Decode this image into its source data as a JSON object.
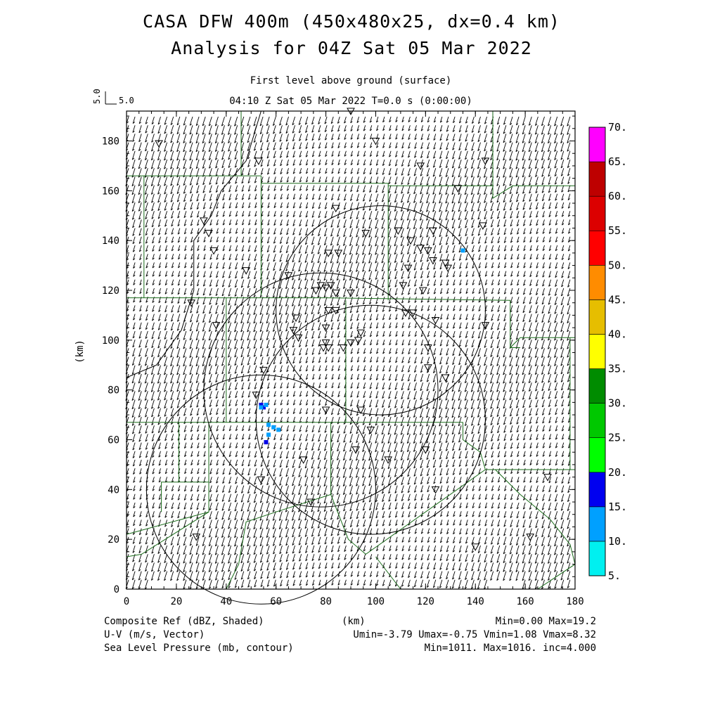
{
  "header": {
    "title_line1": "CASA DFW 400m (450x480x25, dx=0.4 km)",
    "title_line2": "Analysis for 04Z Sat 05 Mar 2022",
    "level": "First level above ground (surface)",
    "time": "04:10 Z Sat 05 Mar 2022    T=0.0 s (0:00:00)",
    "ref_vector_label": "5.0",
    "ref_vector_value": "5.0"
  },
  "axes": {
    "ylabel": "(km)",
    "xlabel": "(km)",
    "xticks": [
      "0",
      "20",
      "40",
      "60",
      "80",
      "100",
      "120",
      "140",
      "160",
      "180"
    ],
    "yticks": [
      "0",
      "20",
      "40",
      "60",
      "80",
      "100",
      "120",
      "140",
      "160",
      "180"
    ],
    "xlim": [
      0,
      180
    ],
    "ylim": [
      0,
      192
    ]
  },
  "colorbar": {
    "labels": [
      "5.",
      "10.",
      "15.",
      "20.",
      "25.",
      "30.",
      "35.",
      "40.",
      "45.",
      "50.",
      "55.",
      "60.",
      "65.",
      "70."
    ],
    "colors": [
      "#00f0f0",
      "#00a0ff",
      "#0000f0",
      "#00ff00",
      "#00c800",
      "#008c00",
      "#ffff00",
      "#e6be00",
      "#ff8c00",
      "#ff0000",
      "#dc0000",
      "#be0000",
      "#ff00ff"
    ]
  },
  "footer": {
    "field1": "Composite Ref (dBZ, Shaded)",
    "field2": "U-V (m/s, Vector)",
    "field3": "Sea Level Pressure (mb, contour)",
    "xunit": "(km)",
    "stats1": "Min=0.00 Max=19.2",
    "stats2": "Umin=-3.79 Umax=-0.75 Vmin=1.08 Vmax=8.32",
    "stats3": "Min=1011. Max=1016. inc=4.000"
  },
  "map": {
    "radar_rings": [
      {
        "cx": 78,
        "cy": 80,
        "r": 47
      },
      {
        "cx": 102,
        "cy": 112,
        "r": 42
      },
      {
        "cx": 98,
        "cy": 68,
        "r": 46
      },
      {
        "cx": 54,
        "cy": 40,
        "r": 46
      }
    ],
    "stations": [
      [
        13,
        179
      ],
      [
        53,
        172
      ],
      [
        90,
        192
      ],
      [
        100,
        180
      ],
      [
        118,
        170
      ],
      [
        144,
        172
      ],
      [
        133,
        161
      ],
      [
        84,
        153
      ],
      [
        31,
        148
      ],
      [
        33,
        143
      ],
      [
        35,
        136
      ],
      [
        96,
        143
      ],
      [
        109,
        144
      ],
      [
        114,
        140
      ],
      [
        123,
        144
      ],
      [
        143,
        146
      ],
      [
        81,
        135
      ],
      [
        85,
        135
      ],
      [
        118,
        137
      ],
      [
        121,
        136
      ],
      [
        123,
        132
      ],
      [
        128,
        131
      ],
      [
        129,
        129
      ],
      [
        113,
        129
      ],
      [
        48,
        128
      ],
      [
        65,
        126
      ],
      [
        78,
        122
      ],
      [
        82,
        122
      ],
      [
        76,
        120
      ],
      [
        80,
        121
      ],
      [
        84,
        119
      ],
      [
        90,
        119
      ],
      [
        111,
        122
      ],
      [
        119,
        120
      ],
      [
        26,
        115
      ],
      [
        81,
        112
      ],
      [
        84,
        112
      ],
      [
        68,
        109
      ],
      [
        112,
        111
      ],
      [
        115,
        111
      ],
      [
        124,
        108
      ],
      [
        144,
        106
      ],
      [
        36,
        106
      ],
      [
        67,
        104
      ],
      [
        80,
        105
      ],
      [
        69,
        101
      ],
      [
        80,
        99
      ],
      [
        79,
        97
      ],
      [
        81,
        97
      ],
      [
        87,
        97
      ],
      [
        90,
        99
      ],
      [
        94,
        103
      ],
      [
        93,
        100
      ],
      [
        121,
        97
      ],
      [
        55,
        88
      ],
      [
        121,
        89
      ],
      [
        128,
        85
      ],
      [
        52,
        78
      ],
      [
        80,
        72
      ],
      [
        94,
        72
      ],
      [
        98,
        64
      ],
      [
        92,
        56
      ],
      [
        105,
        52
      ],
      [
        71,
        52
      ],
      [
        120,
        56
      ],
      [
        54,
        44
      ],
      [
        124,
        40
      ],
      [
        74,
        35
      ],
      [
        28,
        21
      ],
      [
        140,
        17
      ],
      [
        162,
        21
      ],
      [
        169,
        45
      ]
    ],
    "echoes": [
      [
        54,
        74,
        "#0000e6"
      ],
      [
        55,
        73,
        "#0000e6"
      ],
      [
        56,
        74,
        "#00a0ff"
      ],
      [
        57,
        66,
        "#00a0ff"
      ],
      [
        59,
        65,
        "#00a0ff"
      ],
      [
        61,
        64,
        "#00a0ff"
      ],
      [
        57,
        62,
        "#00a0ff"
      ],
      [
        56,
        59,
        "#0000e6"
      ],
      [
        54,
        73,
        "#00a0ff"
      ],
      [
        135,
        136,
        "#00a0ff"
      ]
    ],
    "county_lines": [
      [
        [
          46,
          192
        ],
        [
          46,
          166
        ]
      ],
      [
        [
          0,
          166
        ],
        [
          54,
          166
        ],
        [
          54,
          163
        ],
        [
          105,
          163
        ],
        [
          105,
          162
        ],
        [
          147,
          162
        ],
        [
          147,
          157
        ],
        [
          155,
          162
        ],
        [
          180,
          162
        ]
      ],
      [
        [
          7,
          166
        ],
        [
          7,
          117
        ]
      ],
      [
        [
          54,
          163
        ],
        [
          54,
          118
        ]
      ],
      [
        [
          105,
          162
        ],
        [
          105,
          116
        ]
      ],
      [
        [
          147,
          192
        ],
        [
          147,
          157
        ]
      ],
      [
        [
          0,
          117
        ],
        [
          80,
          117
        ],
        [
          154,
          116
        ],
        [
          154,
          97
        ],
        [
          158,
          101
        ],
        [
          180,
          101
        ]
      ],
      [
        [
          40,
          117
        ],
        [
          40,
          67
        ]
      ],
      [
        [
          88,
          116
        ],
        [
          88,
          67
        ]
      ],
      [
        [
          154,
          97
        ],
        [
          158,
          97
        ]
      ],
      [
        [
          0,
          67
        ],
        [
          88,
          67
        ],
        [
          120,
          67
        ],
        [
          135,
          67
        ]
      ],
      [
        [
          135,
          67
        ],
        [
          135,
          60
        ],
        [
          142,
          55
        ]
      ],
      [
        [
          142,
          55
        ],
        [
          144,
          48
        ],
        [
          180,
          48
        ]
      ],
      [
        [
          178,
          101
        ],
        [
          178,
          48
        ]
      ],
      [
        [
          33,
          67
        ],
        [
          33,
          31
        ],
        [
          6,
          14
        ],
        [
          0,
          13
        ]
      ],
      [
        [
          33,
          43
        ],
        [
          14,
          43
        ],
        [
          14,
          31
        ]
      ],
      [
        [
          21,
          67
        ],
        [
          21,
          43
        ]
      ],
      [
        [
          82,
          67
        ],
        [
          82,
          38
        ],
        [
          89,
          20
        ],
        [
          96,
          14
        ],
        [
          144,
          48
        ]
      ],
      [
        [
          82,
          38
        ],
        [
          60,
          31
        ],
        [
          48,
          27
        ],
        [
          45,
          10
        ],
        [
          40,
          0
        ]
      ],
      [
        [
          0,
          22
        ],
        [
          33,
          31
        ]
      ],
      [
        [
          100,
          13
        ],
        [
          110,
          0
        ]
      ],
      [
        [
          148,
          48
        ],
        [
          158,
          38
        ],
        [
          170,
          28
        ],
        [
          178,
          18
        ],
        [
          180,
          10
        ],
        [
          171,
          4
        ],
        [
          165,
          0
        ]
      ]
    ],
    "pressure_contour": [
      [
        0,
        85
      ],
      [
        12,
        90
      ],
      [
        22,
        104
      ],
      [
        27,
        120
      ],
      [
        27,
        140
      ],
      [
        34,
        150
      ],
      [
        38,
        160
      ],
      [
        48,
        172
      ],
      [
        54,
        192
      ]
    ]
  }
}
